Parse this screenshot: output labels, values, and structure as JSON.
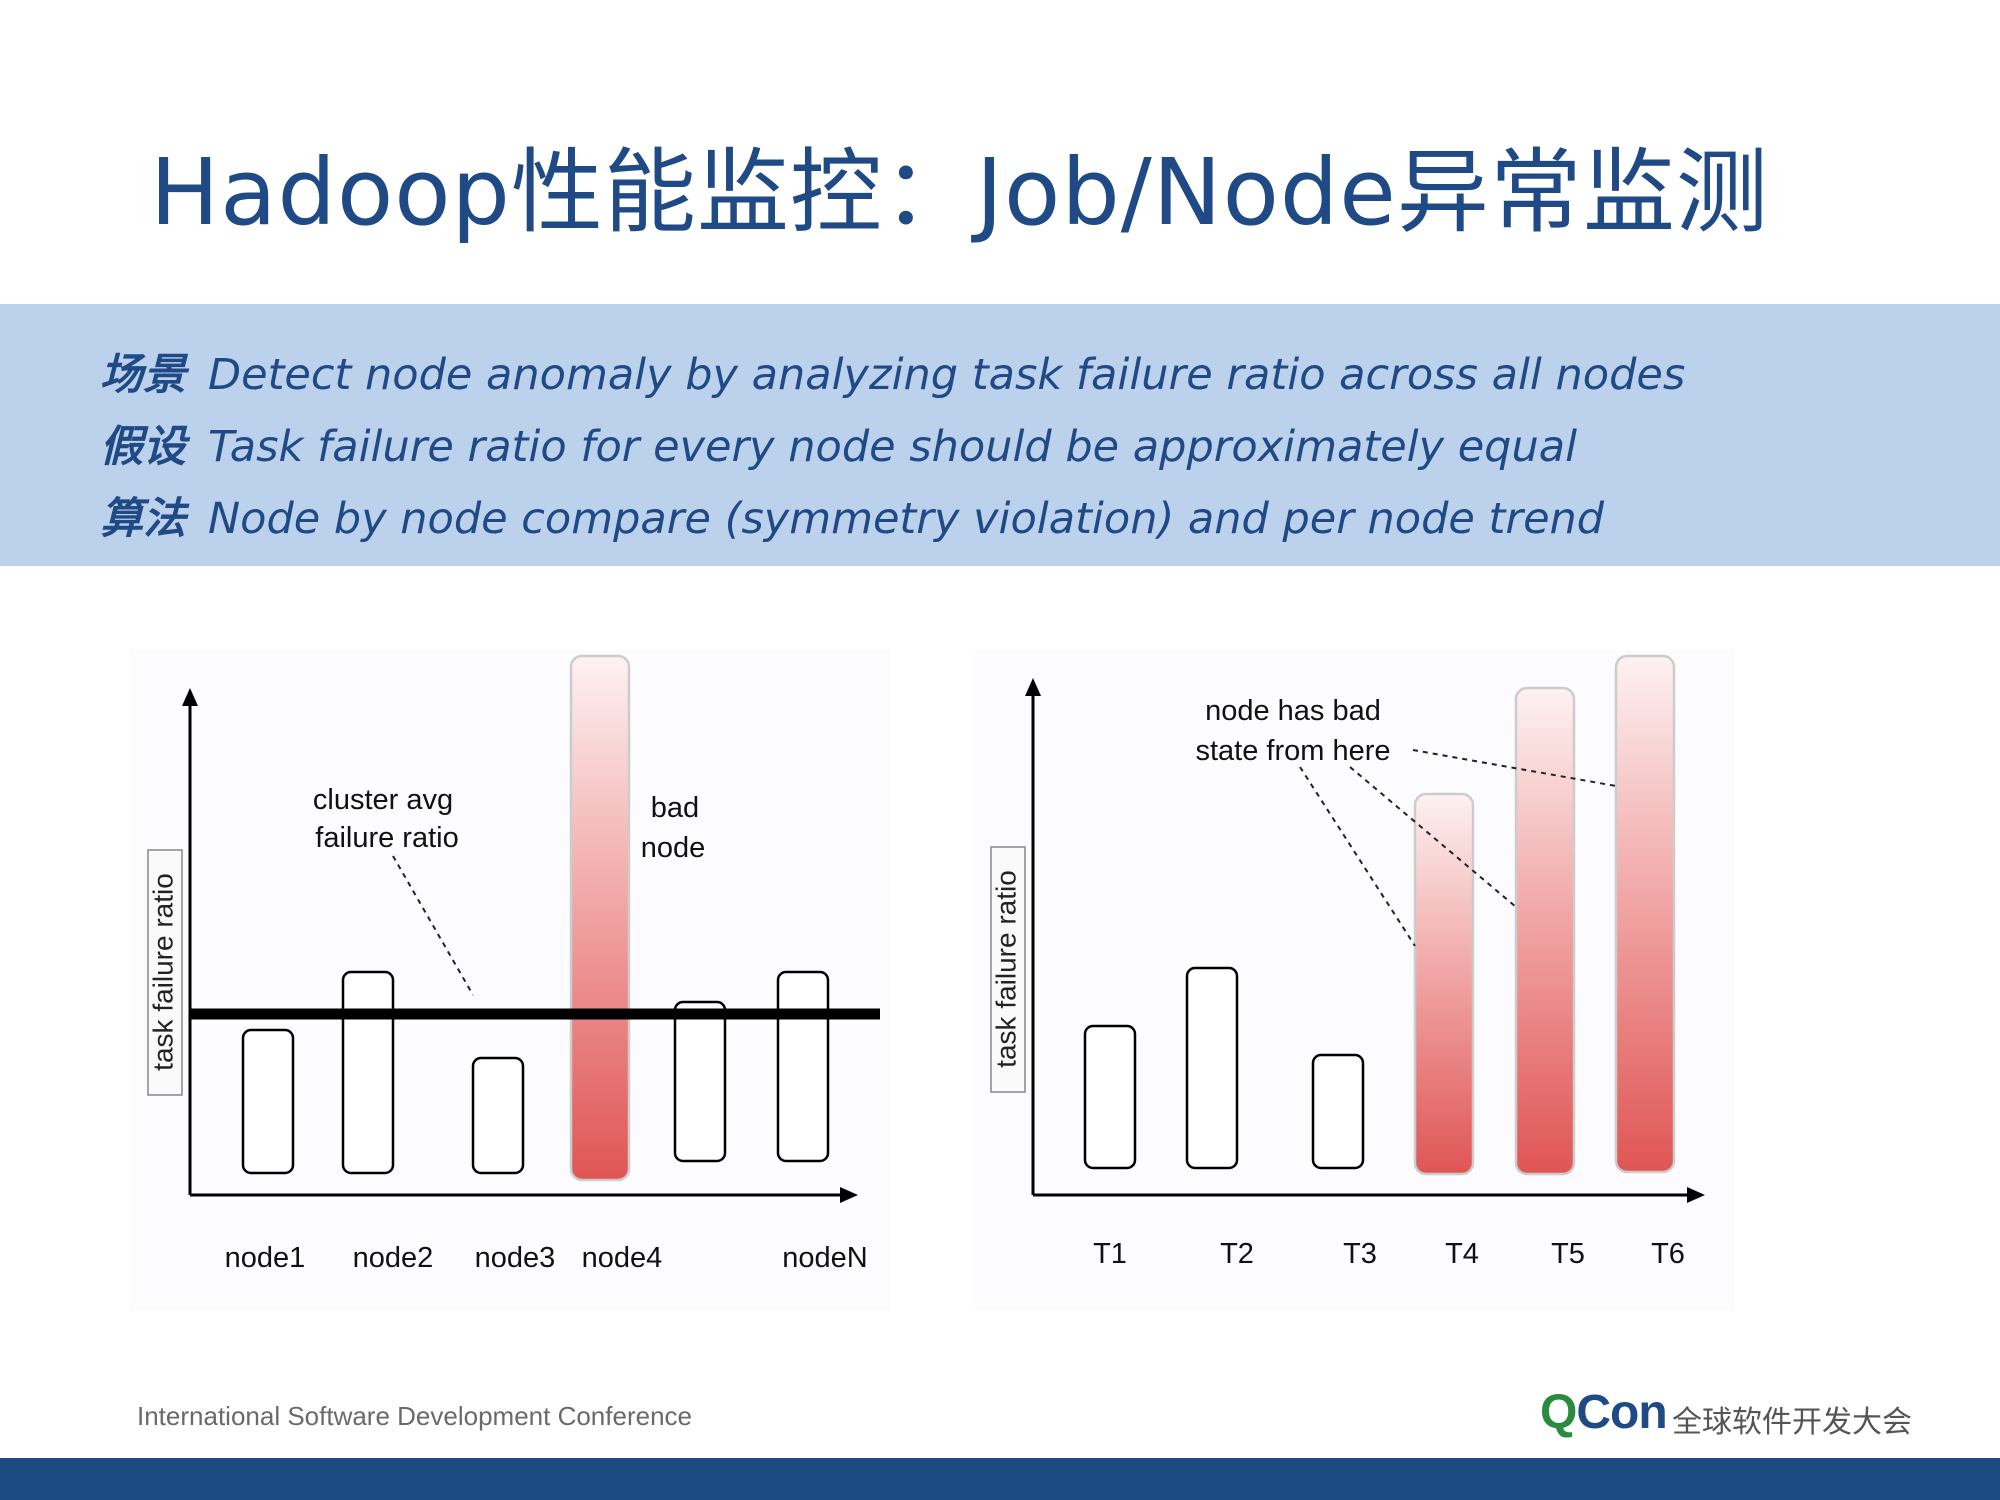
{
  "title": "Hadoop性能监控：Job/Node异常监测",
  "band": {
    "rows": [
      {
        "key": "场景",
        "text": "Detect node anomaly by analyzing task failure ratio across all nodes"
      },
      {
        "key": "假设",
        "text": "Task failure ratio for every node should be approximately equal"
      },
      {
        "key": "算法",
        "text": "Node by node compare (symmetry violation) and per node trend"
      }
    ]
  },
  "left_chart": {
    "ylabel": "task failure ratio",
    "categories": [
      "node1",
      "node2",
      "node3",
      "node4",
      "nodeN"
    ],
    "annotations": {
      "avg_line_label": [
        "cluster avg",
        "failure ratio"
      ],
      "bad_node_label": [
        "bad",
        "node"
      ]
    }
  },
  "right_chart": {
    "ylabel": "task failure ratio",
    "categories": [
      "T1",
      "T2",
      "T3",
      "T4",
      "T5",
      "T6"
    ],
    "annotations": {
      "bad_state_label": [
        "node has bad",
        "state from here"
      ]
    }
  },
  "footer": {
    "left_text": "International Software Development Conference",
    "logo_q": "Q",
    "logo_rest": "Con",
    "logo_tag": "全球软件开发大会"
  },
  "colors": {
    "title": "#1f4a86",
    "band_bg": "#bcd1ec",
    "bad_bar_top": "#fbeaea",
    "bad_bar_bottom": "#e25858",
    "bottom_bar": "#1d4a80"
  }
}
